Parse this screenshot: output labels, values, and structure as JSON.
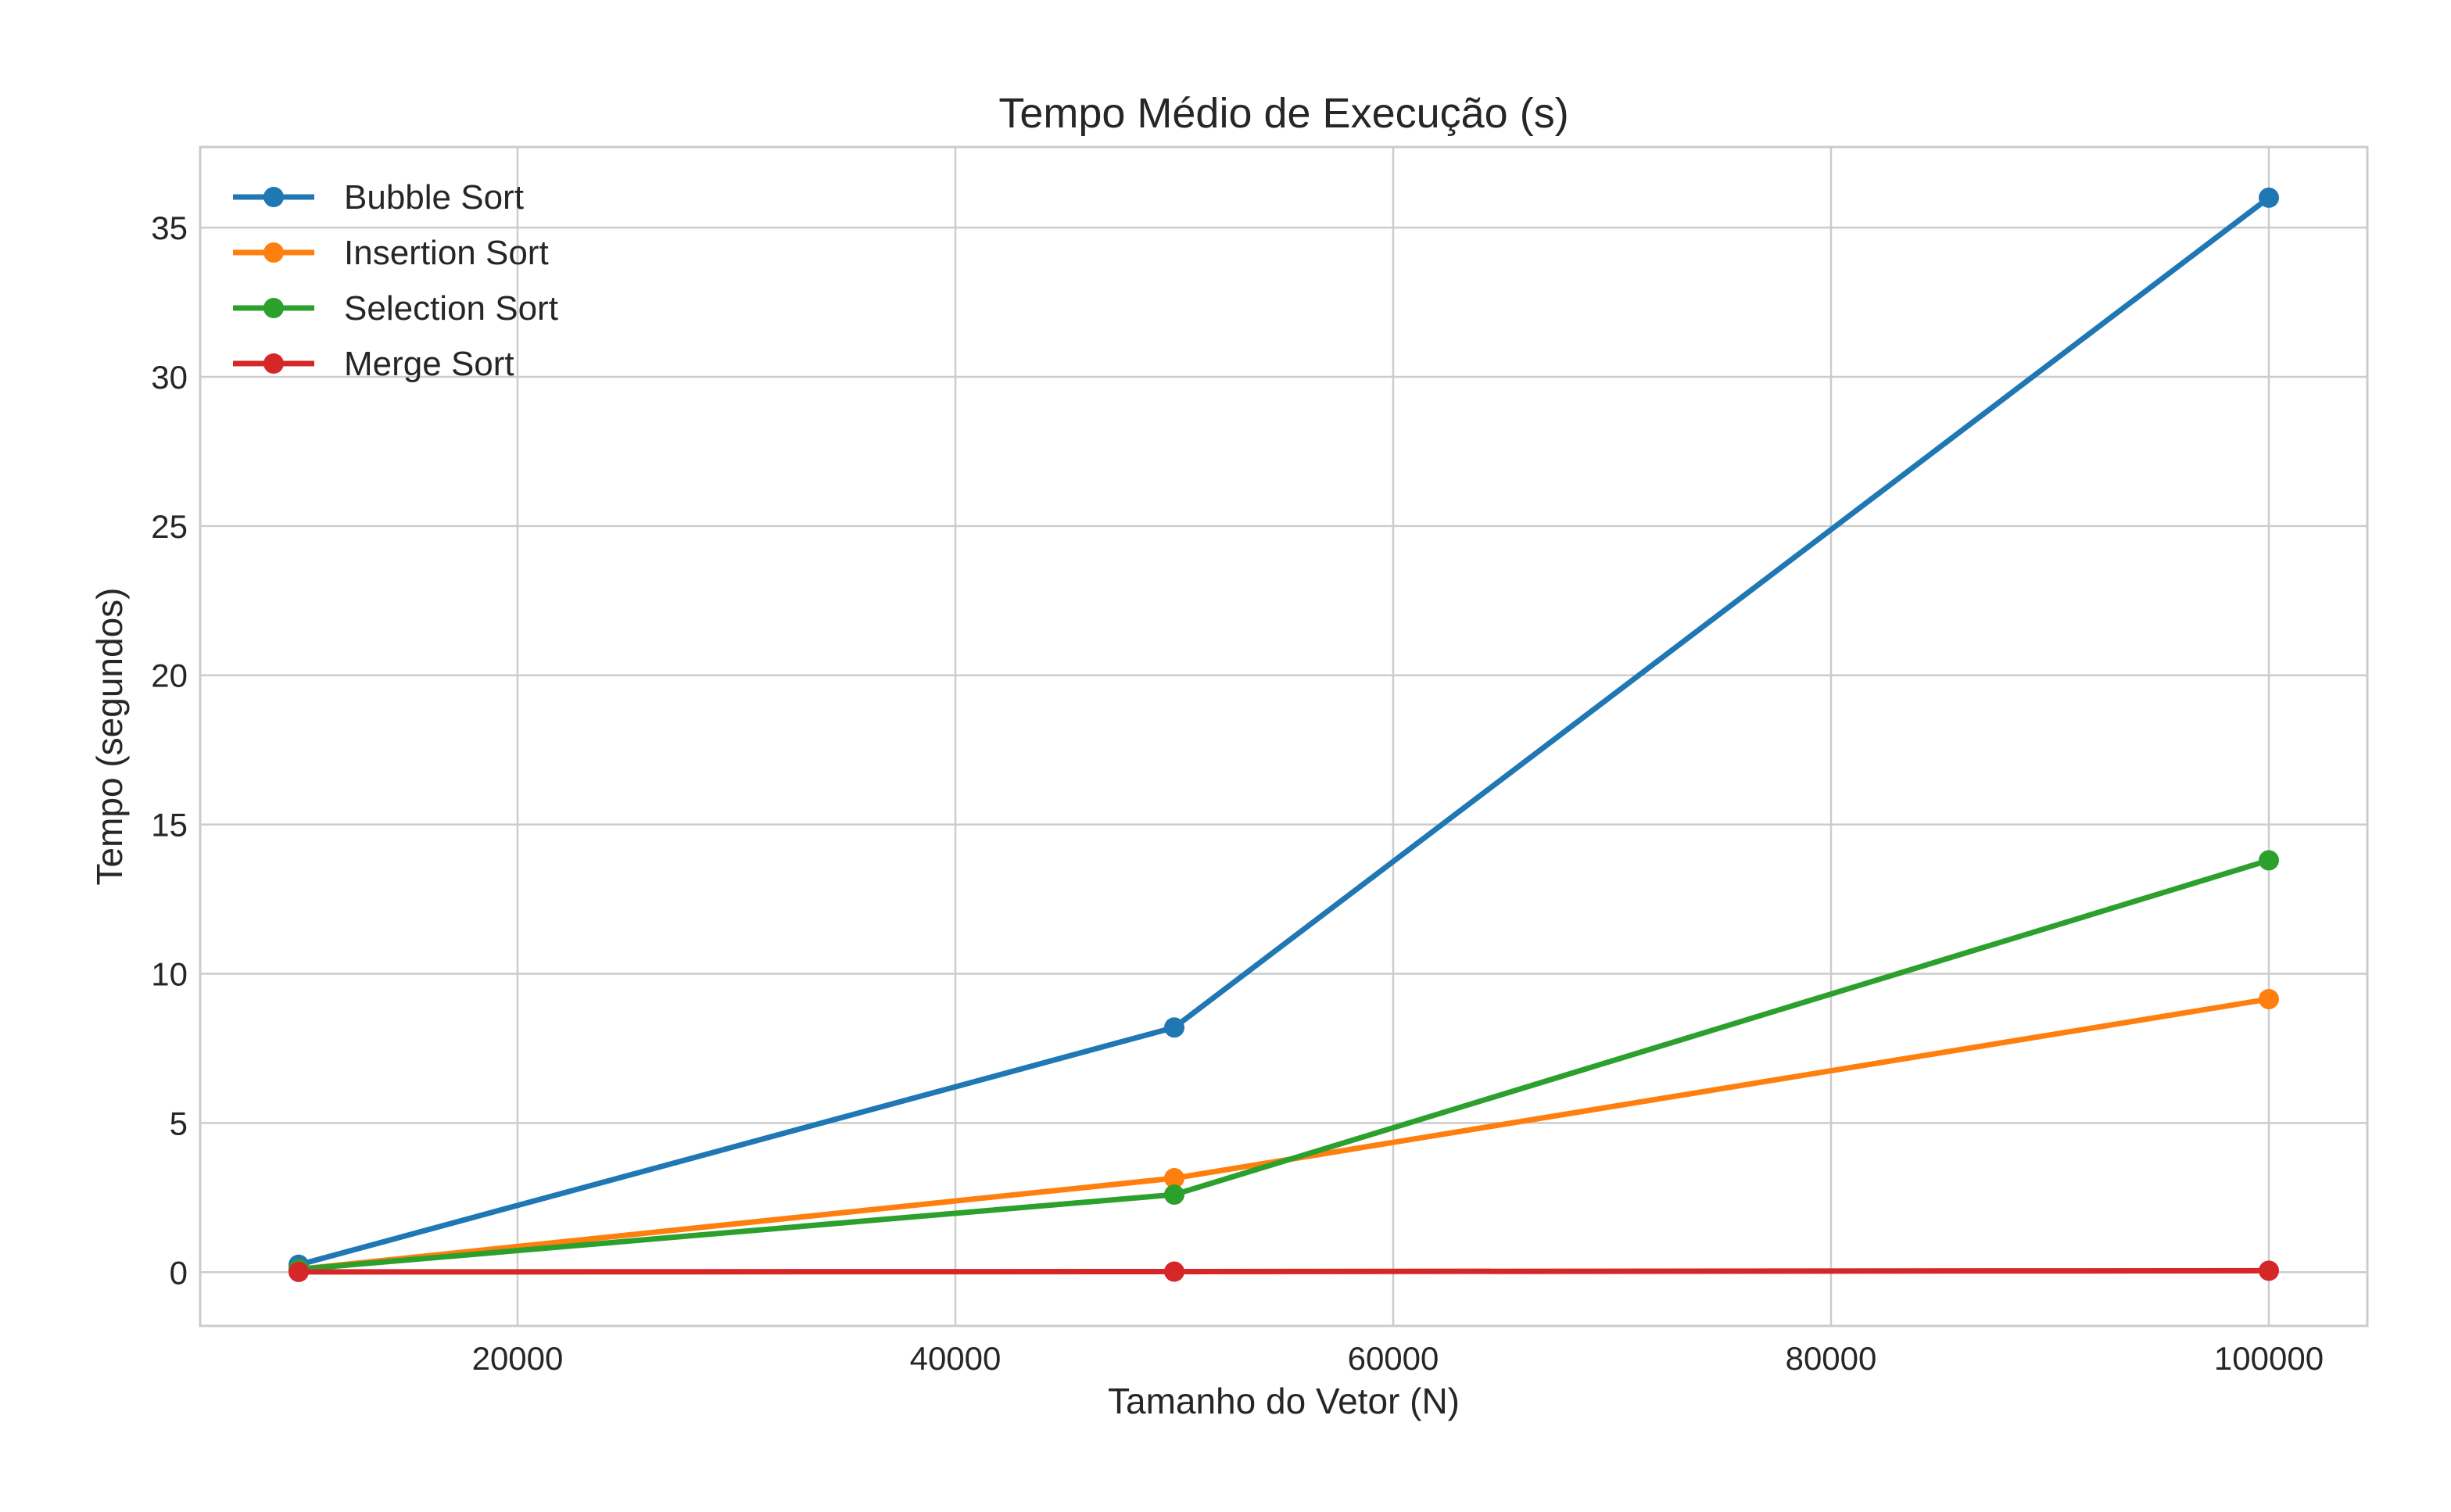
{
  "chart_data": {
    "type": "line",
    "title": "Tempo Médio de Execução (s)",
    "xlabel": "Tamanho do Vetor (N)",
    "ylabel": "Tempo (segundos)",
    "x": [
      10000,
      50000,
      100000
    ],
    "xlim": [
      5500,
      104500
    ],
    "ylim": [
      -1.8,
      37.7
    ],
    "xticks": [
      20000,
      40000,
      60000,
      80000,
      100000
    ],
    "yticks": [
      0,
      5,
      10,
      15,
      20,
      25,
      30,
      35
    ],
    "grid": true,
    "legend_position": "top-left",
    "series": [
      {
        "name": "Bubble Sort",
        "color": "#1f77b4",
        "values": [
          0.25,
          8.2,
          36.0
        ]
      },
      {
        "name": "Insertion Sort",
        "color": "#ff7f0e",
        "values": [
          0.1,
          3.15,
          9.15
        ]
      },
      {
        "name": "Selection Sort",
        "color": "#2ca02c",
        "values": [
          0.1,
          2.6,
          13.8
        ]
      },
      {
        "name": "Merge Sort",
        "color": "#d62728",
        "values": [
          0.01,
          0.02,
          0.05
        ]
      }
    ]
  }
}
